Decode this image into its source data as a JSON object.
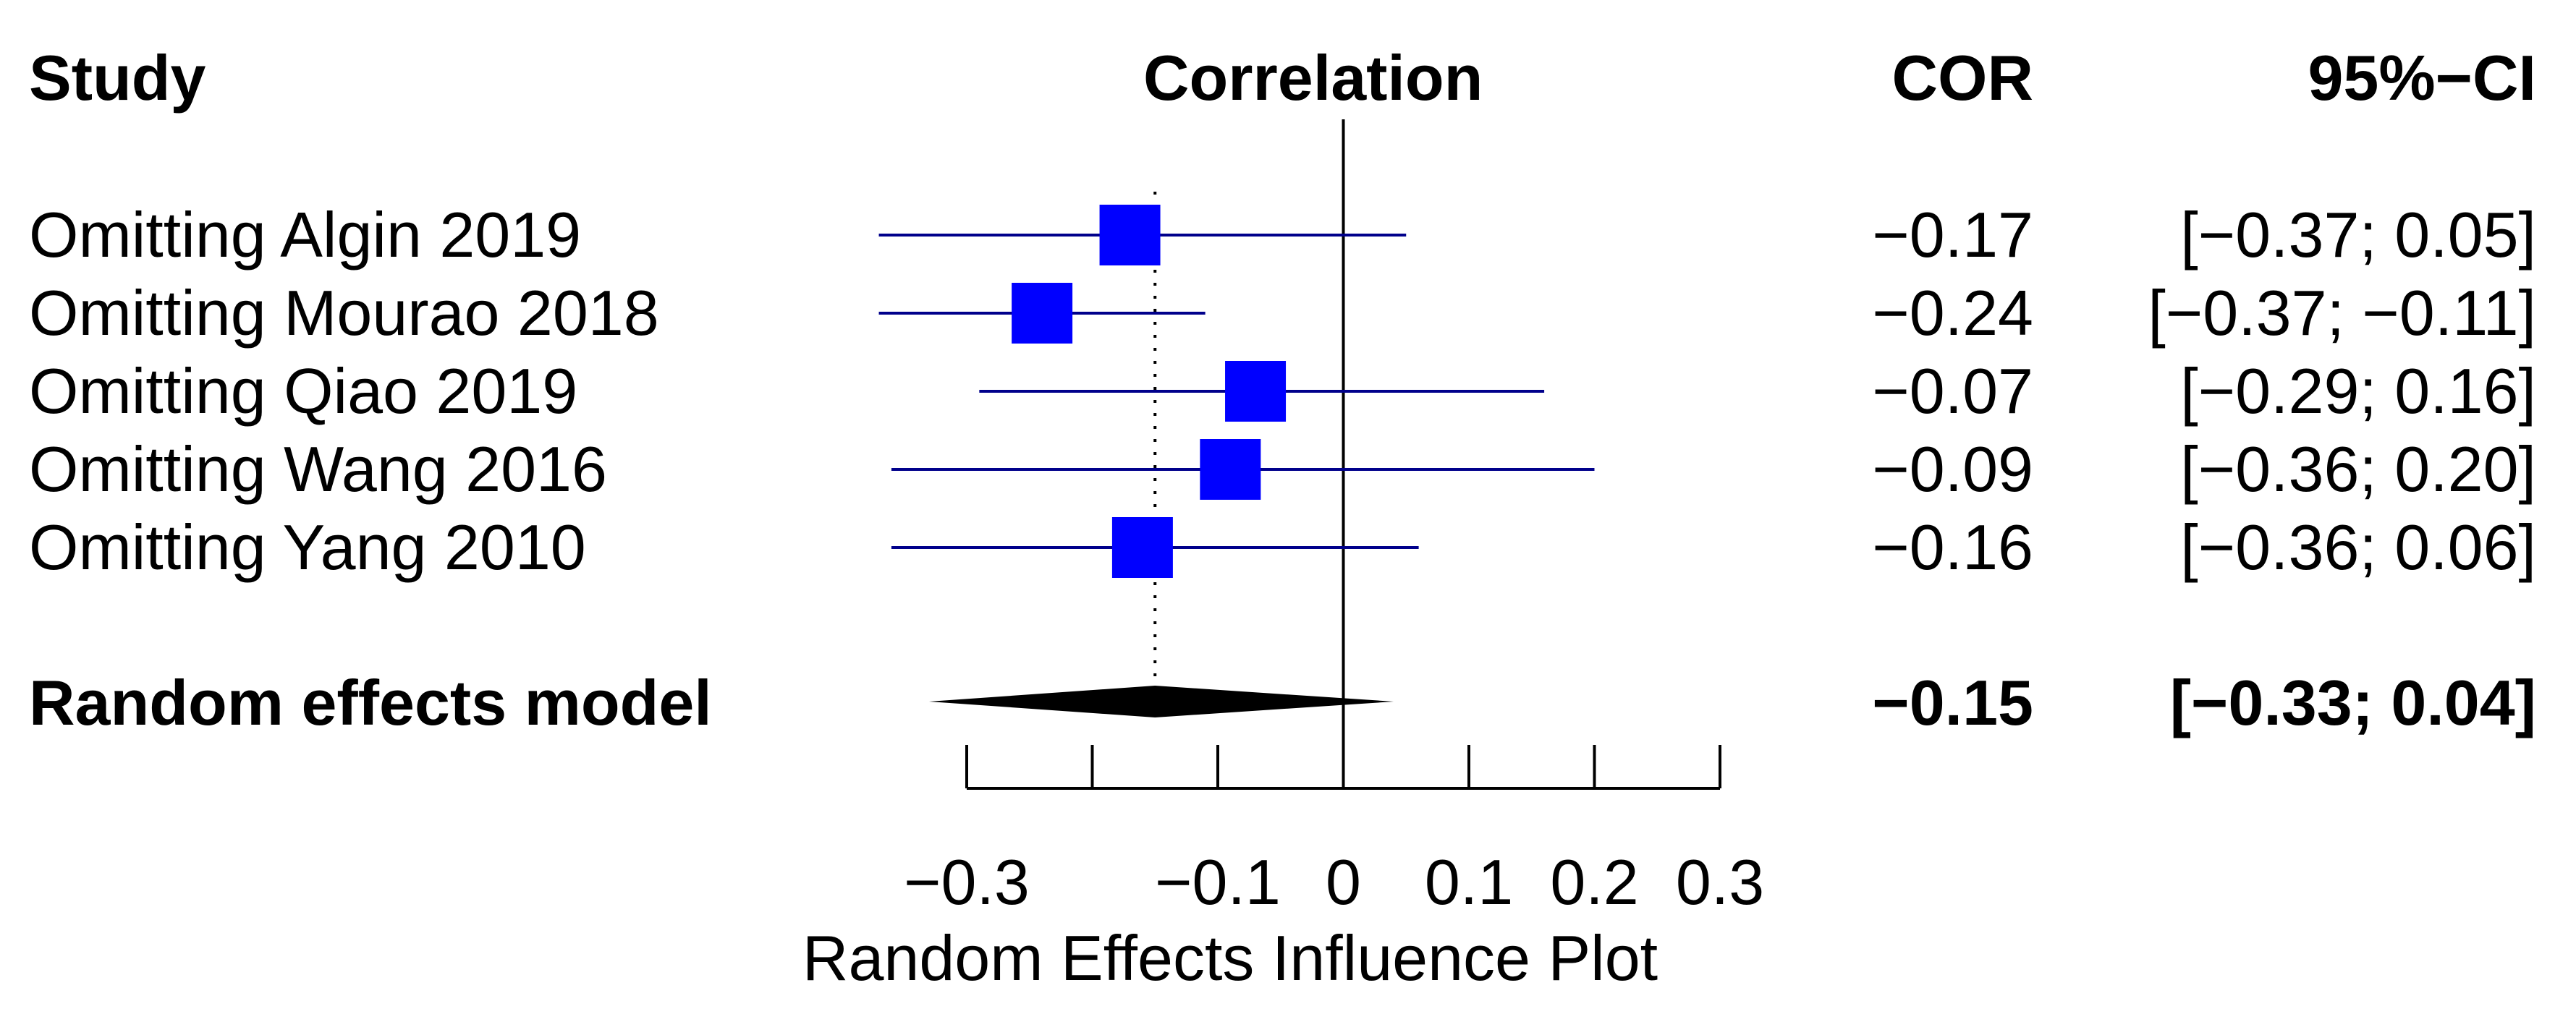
{
  "chart_data": {
    "type": "forest",
    "headers": {
      "study": "Study",
      "effect": "Correlation",
      "estimate": "COR",
      "ci": "95%−CI"
    },
    "xlabel": "Random Effects Influence Plot",
    "xlim": [
      -0.3,
      0.3
    ],
    "ticks": [
      -0.3,
      -0.2,
      -0.1,
      0,
      0.1,
      0.2,
      0.3
    ],
    "tick_labels": [
      "−0.3",
      "",
      "−0.1",
      "0",
      "0.1",
      "0.2",
      "0.3"
    ],
    "reference_line": 0,
    "pooled_line": -0.15,
    "studies": [
      {
        "label": "Omitting Algin 2019",
        "cor": -0.17,
        "lower": -0.37,
        "upper": 0.05,
        "cor_text": "−0.17",
        "ci_text": "[−0.37;  0.05]"
      },
      {
        "label": "Omitting Mourao 2018",
        "cor": -0.24,
        "lower": -0.37,
        "upper": -0.11,
        "cor_text": "−0.24",
        "ci_text": "[−0.37; −0.11]"
      },
      {
        "label": "Omitting Qiao 2019",
        "cor": -0.07,
        "lower": -0.29,
        "upper": 0.16,
        "cor_text": "−0.07",
        "ci_text": "[−0.29;  0.16]"
      },
      {
        "label": "Omitting Wang 2016",
        "cor": -0.09,
        "lower": -0.36,
        "upper": 0.2,
        "cor_text": "−0.09",
        "ci_text": "[−0.36;  0.20]"
      },
      {
        "label": "Omitting Yang 2010",
        "cor": -0.16,
        "lower": -0.36,
        "upper": 0.06,
        "cor_text": "−0.16",
        "ci_text": "[−0.36;  0.06]"
      }
    ],
    "summary": {
      "label": "Random effects model",
      "cor": -0.15,
      "lower": -0.33,
      "upper": 0.04,
      "cor_text": "−0.15",
      "ci_text": "[−0.33;  0.04]"
    },
    "colors": {
      "square": "#0000ff",
      "ci_line": "#00008b",
      "diamond": "#000000",
      "axis": "#000000"
    }
  }
}
